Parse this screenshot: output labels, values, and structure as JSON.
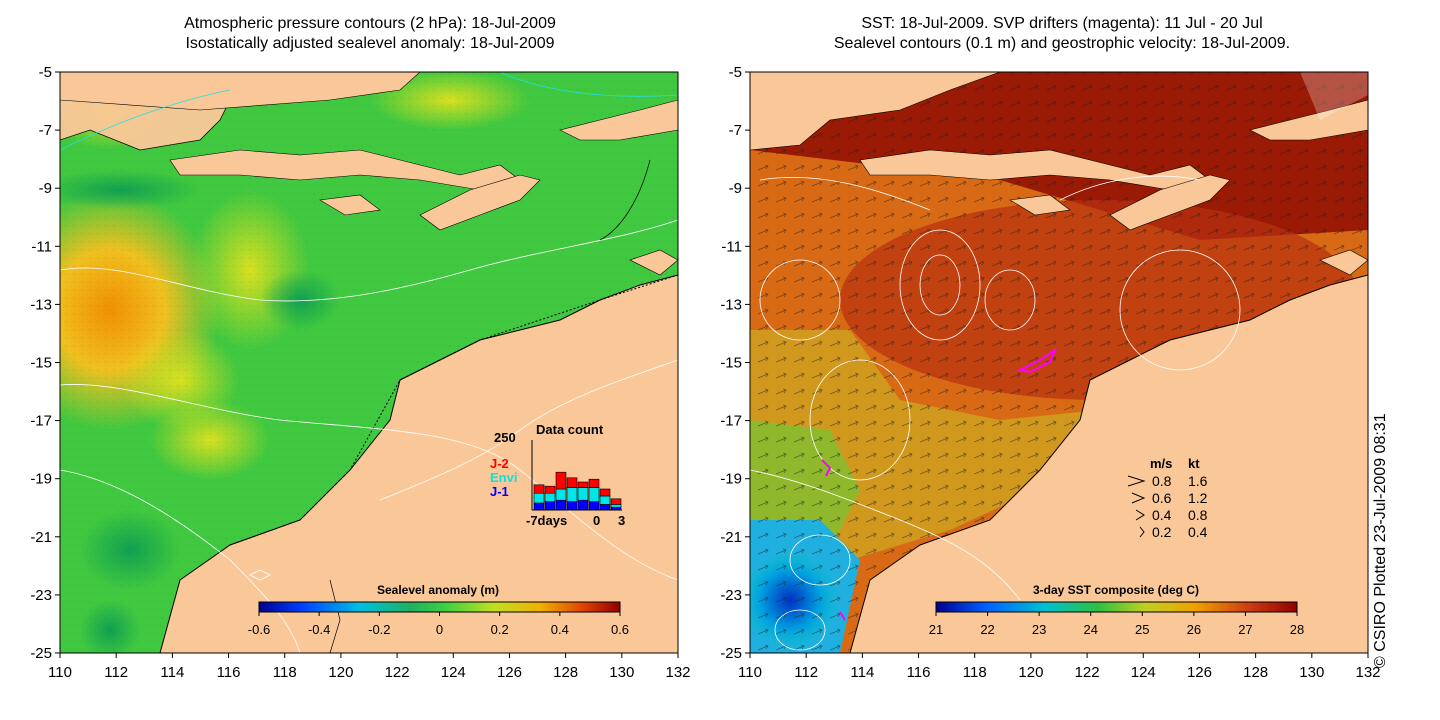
{
  "left_panel": {
    "title_line1": "Atmospheric pressure contours (2 hPa): 18-Jul-2009",
    "title_line2": "Isostatically adjusted sealevel anomaly: 18-Jul-2009",
    "colorbar": {
      "title": "Sealevel anomaly (m)",
      "ticks": [
        "-0.6",
        "-0.4",
        "-0.2",
        "0",
        "0.2",
        "0.4",
        "0.6"
      ]
    },
    "inset": {
      "title": "Data count",
      "y_max_label": "250",
      "x_labels": [
        "-7days",
        "0",
        "3"
      ],
      "legend": [
        {
          "label": "J-2",
          "color": "#ff0000"
        },
        {
          "label": "Envi",
          "color": "#00e5e5"
        },
        {
          "label": "J-1",
          "color": "#0000ff"
        }
      ],
      "bars": [
        {
          "j1": 25,
          "envi": 35,
          "j2": 30
        },
        {
          "j1": 30,
          "envi": 30,
          "j2": 25
        },
        {
          "j1": 35,
          "envi": 40,
          "j2": 60
        },
        {
          "j1": 30,
          "envi": 50,
          "j2": 35
        },
        {
          "j1": 35,
          "envi": 45,
          "j2": 20
        },
        {
          "j1": 30,
          "envi": 50,
          "j2": 30
        },
        {
          "j1": 20,
          "envi": 30,
          "j2": 25
        },
        {
          "j1": 10,
          "envi": 10,
          "j2": 20
        }
      ]
    }
  },
  "right_panel": {
    "title_line1": "SST: 18-Jul-2009. SVP drifters (magenta): 11 Jul - 20 Jul",
    "title_line2": "Sealevel contours (0.1 m) and geostrophic velocity: 18-Jul-2009.",
    "colorbar": {
      "title": "3-day SST composite (deg C)",
      "ticks": [
        "21",
        "22",
        "23",
        "24",
        "25",
        "26",
        "27",
        "28"
      ]
    },
    "velocity_legend": {
      "header_ms": "m/s",
      "header_kt": "kt",
      "rows": [
        {
          "ms": "0.8",
          "kt": "1.6"
        },
        {
          "ms": "0.6",
          "kt": "1.2"
        },
        {
          "ms": "0.4",
          "kt": "0.8"
        },
        {
          "ms": "0.2",
          "kt": "0.4"
        }
      ]
    }
  },
  "axes": {
    "lat_labels": [
      "-5",
      "-7",
      "-9",
      "-11",
      "-13",
      "-15",
      "-17",
      "-19",
      "-21",
      "-23",
      "-25"
    ],
    "lon_labels": [
      "110",
      "112",
      "114",
      "116",
      "118",
      "120",
      "122",
      "124",
      "126",
      "128",
      "130",
      "132"
    ]
  },
  "credit": "© CSIRO Plotted 23-Jul-2009 08:31",
  "colors": {
    "land": "#fac898",
    "ocean_green": "#3ec83e",
    "sst_hot": "#9b1a05",
    "sst_warm": "#c84a10",
    "sst_mid": "#e07a18"
  }
}
